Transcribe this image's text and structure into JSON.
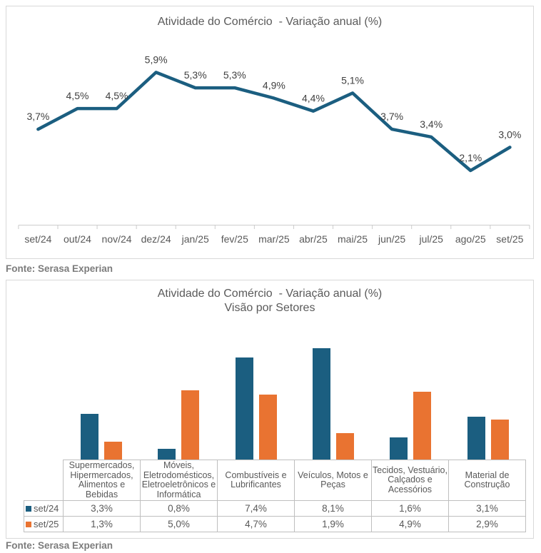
{
  "colors": {
    "series_blue": "#1B5E80",
    "series_orange": "#E97331",
    "title_text": "#5A5A5A",
    "data_label_text": "#404040",
    "axis_text": "#595959",
    "axis_line": "#CCCCCC",
    "card_border": "#D9D9D9",
    "table_border": "#BFBFBF",
    "caption_text": "#7C7C7C"
  },
  "captions": {
    "top_source": "Fonte: Serasa Experian",
    "bottom_source": "Fonte: Serasa Experian"
  },
  "chart_data": [
    {
      "type": "line",
      "title": "Atividade do Comércio  - Variação anual (%)",
      "categories": [
        "set/24",
        "out/24",
        "nov/24",
        "dez/24",
        "jan/25",
        "fev/25",
        "mar/25",
        "abr/25",
        "mai/25",
        "jun/25",
        "jul/25",
        "ago/25",
        "set/25"
      ],
      "values": [
        3.7,
        4.5,
        4.5,
        5.9,
        5.3,
        5.3,
        4.9,
        4.4,
        5.1,
        3.7,
        3.4,
        2.1,
        3.0
      ],
      "point_labels": [
        "3,7%",
        "4,5%",
        "4,5%",
        "5,9%",
        "5,3%",
        "5,3%",
        "4,9%",
        "4,4%",
        "5,1%",
        "3,7%",
        "3,4%",
        "2,1%",
        "3,0%"
      ],
      "ylim": [
        0,
        7.5
      ],
      "grid": false,
      "legend_position": "none",
      "line_color": "#1B5E80"
    },
    {
      "type": "bar",
      "title": "Atividade do Comércio  - Variação anual (%)",
      "subtitle": "Visão por Setores",
      "categories": [
        "Supermercados, Hipermercados, Alimentos e Bebidas",
        "Móveis, Eletrodomésticos, Eletroeletrônicos e Informática",
        "Combustíveis e Lubrificantes",
        "Veículos, Motos e Peças",
        "Tecidos, Vestuário, Calçados e Acessórios",
        "Material de Construção"
      ],
      "series": [
        {
          "name": "set/24",
          "color": "#1B5E80",
          "values": [
            3.3,
            0.8,
            7.4,
            8.1,
            1.6,
            3.1
          ],
          "labels": [
            "3,3%",
            "0,8%",
            "7,4%",
            "8,1%",
            "1,6%",
            "3,1%"
          ]
        },
        {
          "name": "set/25",
          "color": "#E97331",
          "values": [
            1.3,
            5.0,
            4.7,
            1.9,
            4.9,
            2.9
          ],
          "labels": [
            "1,3%",
            "5,0%",
            "4,7%",
            "1,9%",
            "4,9%",
            "2,9%"
          ]
        }
      ],
      "ylim": [
        0,
        9
      ],
      "grid": false,
      "legend_position": "data-table-left",
      "data_table": true
    }
  ]
}
